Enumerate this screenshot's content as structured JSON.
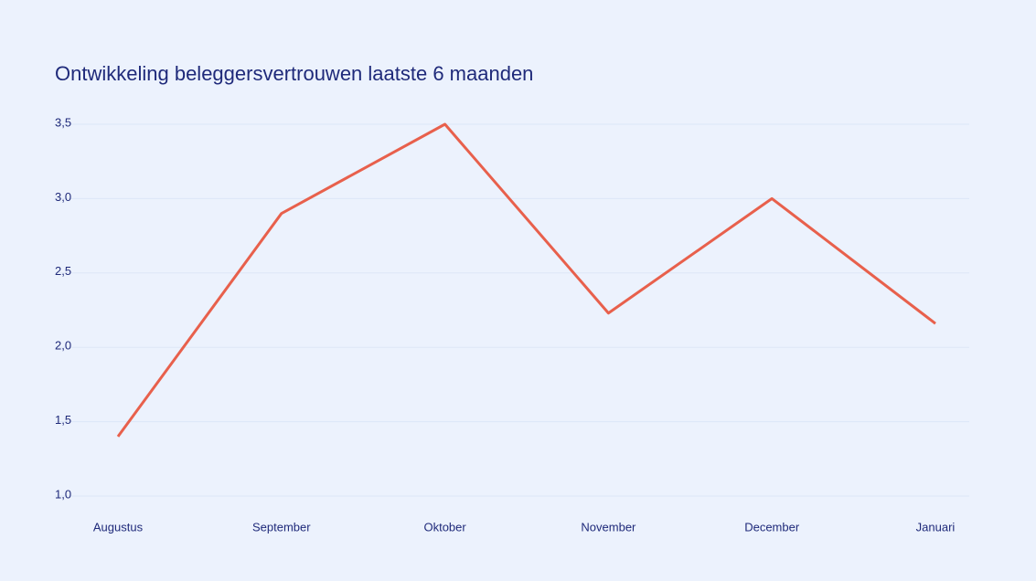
{
  "chart_data": {
    "type": "line",
    "title": "Ontwikkeling beleggersvertrouwen laatste 6 maanden",
    "categories": [
      "Augustus",
      "September",
      "Oktober",
      "November",
      "December",
      "Januari"
    ],
    "series": [
      {
        "color": "#e8604c",
        "values": [
          1.4,
          2.9,
          3.5,
          2.23,
          3.0,
          2.16
        ]
      }
    ],
    "ylim": [
      1.0,
      3.5
    ],
    "yticks": [
      {
        "value": 1.0,
        "label": "1,0"
      },
      {
        "value": 1.5,
        "label": "1,5"
      },
      {
        "value": 2.0,
        "label": "2,0"
      },
      {
        "value": 2.5,
        "label": "2,5"
      },
      {
        "value": 3.0,
        "label": "3,0"
      },
      {
        "value": 3.5,
        "label": "3,5"
      }
    ],
    "grid": true
  }
}
